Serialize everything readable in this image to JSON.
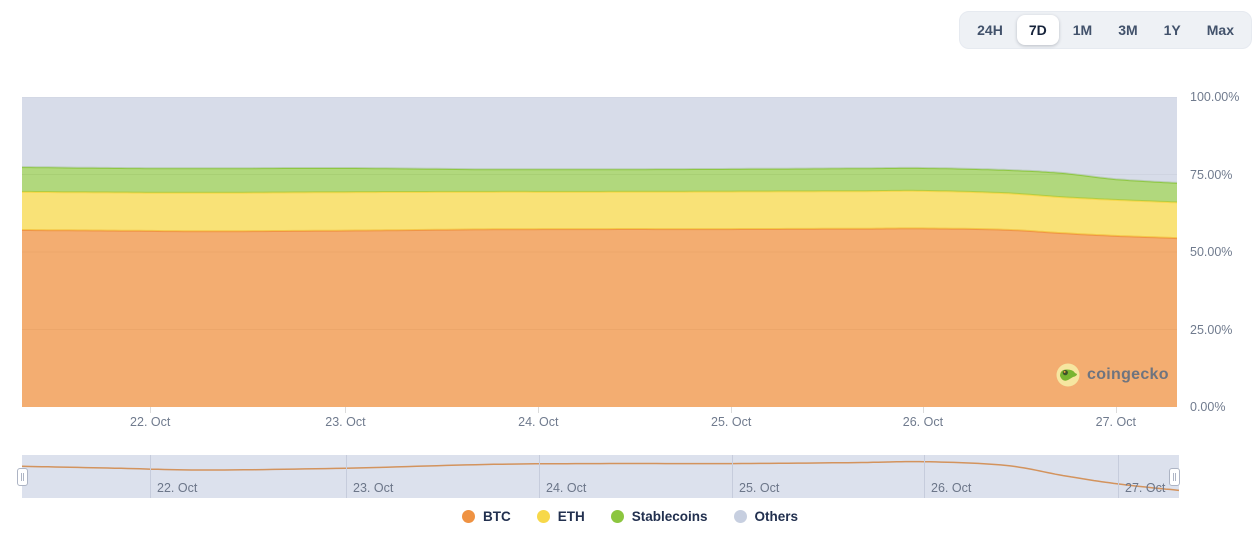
{
  "time_range_selector": {
    "options": [
      {
        "label": "24H",
        "selected": false
      },
      {
        "label": "7D",
        "selected": true
      },
      {
        "label": "1M",
        "selected": false
      },
      {
        "label": "3M",
        "selected": false
      },
      {
        "label": "1Y",
        "selected": false
      },
      {
        "label": "Max",
        "selected": false
      }
    ]
  },
  "chart": {
    "watermark": "coingecko"
  },
  "chart_data": {
    "type": "area",
    "stacked": true,
    "unit": "%",
    "ylim": [
      0,
      100
    ],
    "y_ticks": [
      100,
      75,
      50,
      25,
      0
    ],
    "y_tick_labels": [
      "100.00%",
      "75.00%",
      "50.00%",
      "25.00%",
      "0.00%"
    ],
    "x": [
      0,
      0.08,
      0.16,
      0.28,
      0.4,
      0.5,
      0.614,
      0.72,
      0.78,
      0.85,
      0.9,
      0.947,
      1.0
    ],
    "x_tick_positions": [
      0.111,
      0.28,
      0.447,
      0.614,
      0.78,
      0.947
    ],
    "x_tick_labels": [
      "22. Oct",
      "23. Oct",
      "24. Oct",
      "25. Oct",
      "26. Oct",
      "27. Oct"
    ],
    "series": [
      {
        "name": "BTC",
        "color": "#EF9242",
        "values": [
          57.1,
          56.9,
          56.7,
          56.9,
          57.3,
          57.4,
          57.4,
          57.5,
          57.6,
          57.2,
          56.1,
          55.2,
          54.5
        ]
      },
      {
        "name": "ETH",
        "color": "#F7D84A",
        "values": [
          12.3,
          12.3,
          12.4,
          12.4,
          12.1,
          12.0,
          12.1,
          12.1,
          12.1,
          11.8,
          11.6,
          11.6,
          11.5
        ]
      },
      {
        "name": "Stablecoins",
        "color": "#8CC63F",
        "values": [
          8.0,
          7.9,
          7.9,
          7.8,
          7.3,
          7.3,
          7.3,
          7.4,
          7.4,
          7.5,
          7.8,
          6.7,
          6.3
        ]
      },
      {
        "name": "Others",
        "color": "#C7CFE0",
        "values": [
          22.6,
          22.9,
          23.0,
          22.9,
          23.3,
          23.3,
          23.2,
          23.0,
          22.9,
          23.5,
          24.5,
          26.5,
          27.7
        ]
      }
    ],
    "grid": true,
    "legend_position": "bottom"
  },
  "navigator": {
    "series_shown": "BTC",
    "line_color": "#D28E55",
    "y_range": [
      54,
      58
    ],
    "x_tick_labels": [
      "22. Oct",
      "23. Oct",
      "24. Oct",
      "25. Oct",
      "26. Oct",
      "27. Oct"
    ]
  },
  "legend": {
    "items": [
      {
        "label": "BTC",
        "color": "#EF9242"
      },
      {
        "label": "ETH",
        "color": "#F7D84A"
      },
      {
        "label": "Stablecoins",
        "color": "#8CC63F"
      },
      {
        "label": "Others",
        "color": "#C7CFE0"
      }
    ]
  },
  "colors": {
    "background": "#FFFFFF",
    "axis_label": "#707B8E",
    "gridline": "#E2E2E2",
    "selector_bg": "#EEF1F5",
    "selector_text": "#42526B",
    "selected_bg": "#FFFFFF",
    "navigator_bg": "#DCE1ED",
    "navigator_grid": "#C6CCDC",
    "legend_text": "#22304F",
    "watermark_text": "#6E747F"
  }
}
